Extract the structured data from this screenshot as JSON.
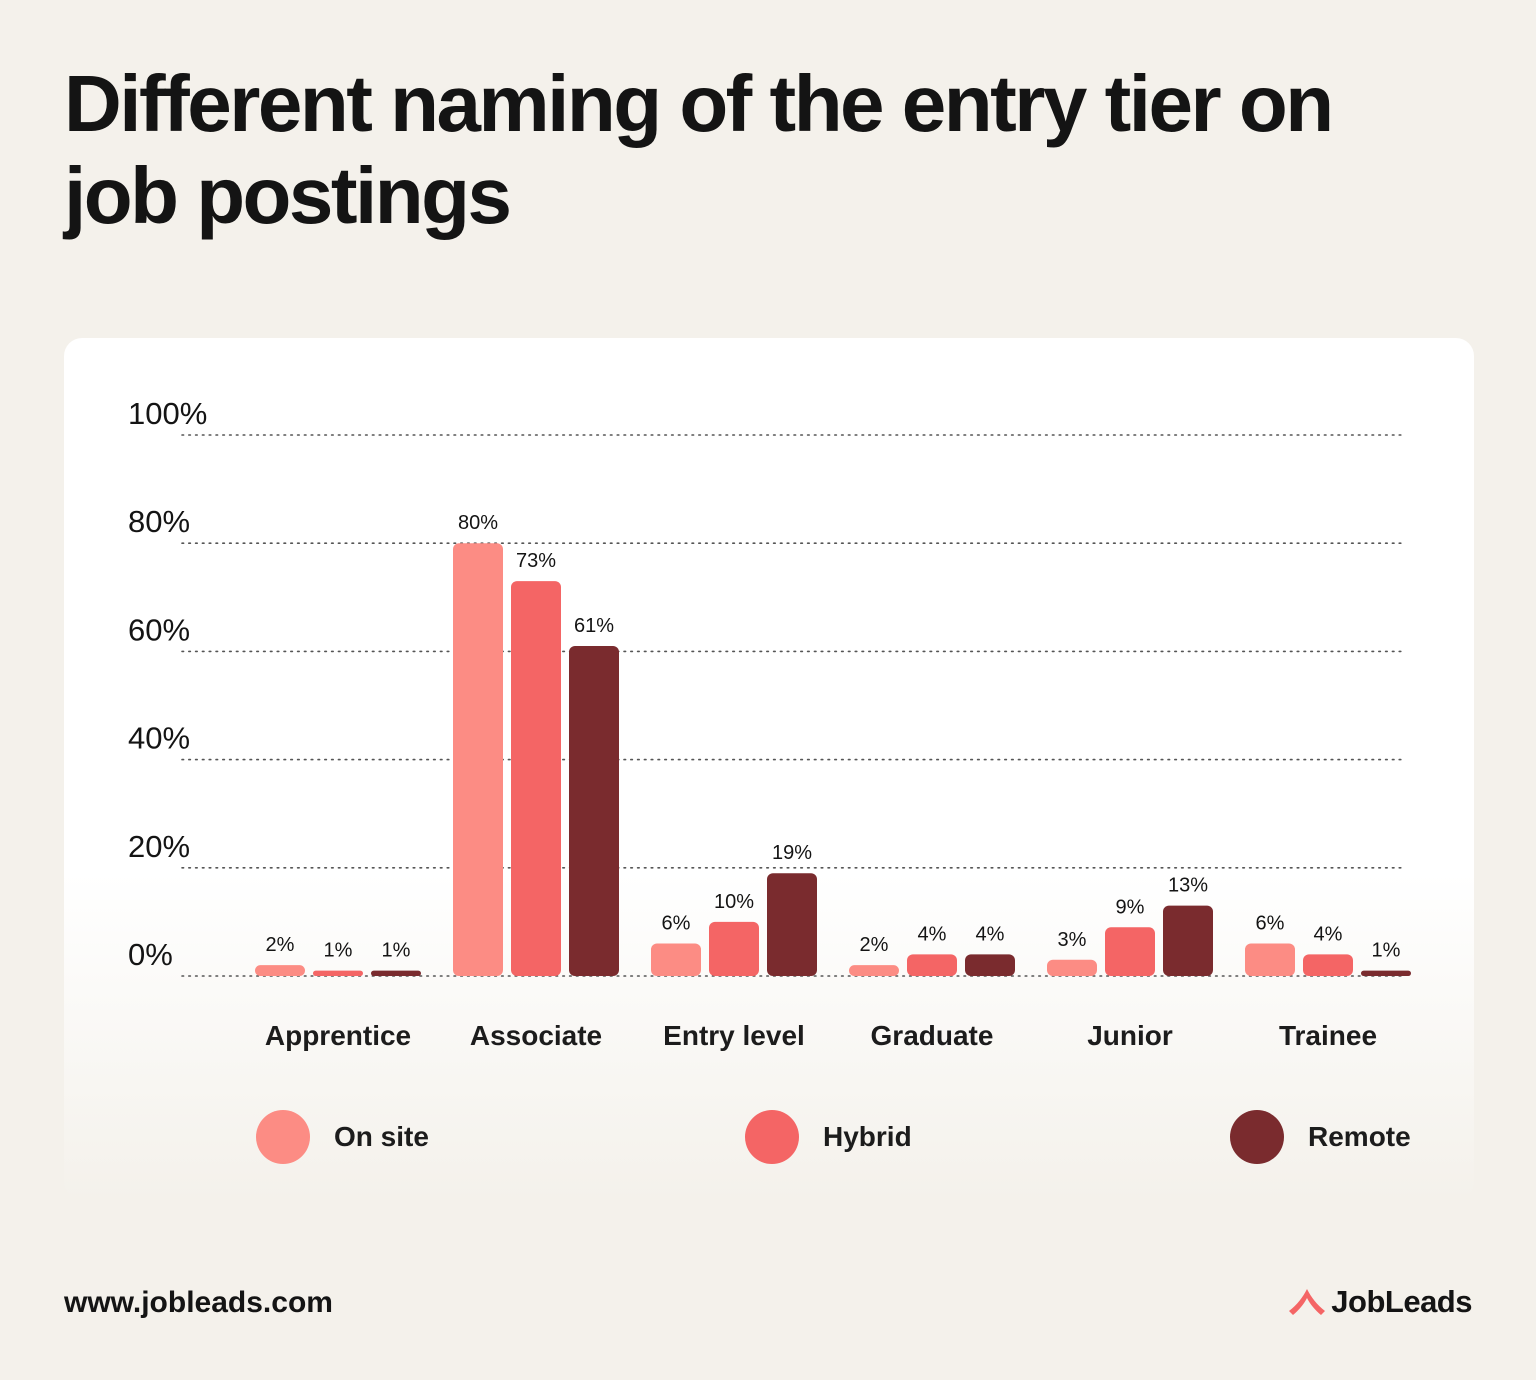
{
  "header": {
    "title": "Different naming of the entry tier on job postings"
  },
  "colors": {
    "on_site": "#fc8c84",
    "hybrid": "#f46565",
    "remote": "#7a2b2e",
    "brand_accent": "#f46565"
  },
  "chart_data": {
    "type": "bar",
    "title": "Different naming of the entry tier on job postings",
    "xlabel": "",
    "ylabel": "",
    "ylim": [
      0,
      100
    ],
    "y_ticks": [
      0,
      20,
      40,
      60,
      80,
      100
    ],
    "y_tick_labels": [
      "0%",
      "20%",
      "40%",
      "60%",
      "80%",
      "100%"
    ],
    "grid": "dotted horizontal",
    "legend_position": "bottom",
    "categories": [
      "Apprentice",
      "Associate",
      "Entry level",
      "Graduate",
      "Junior",
      "Trainee"
    ],
    "series": [
      {
        "name": "On site",
        "color": "#fc8c84",
        "values": [
          2,
          80,
          6,
          2,
          3,
          6
        ],
        "labels": [
          "2%",
          "80%",
          "6%",
          "2%",
          "3%",
          "6%"
        ]
      },
      {
        "name": "Hybrid",
        "color": "#f46565",
        "values": [
          1,
          73,
          10,
          4,
          9,
          4
        ],
        "labels": [
          "1%",
          "73%",
          "10%",
          "4%",
          "9%",
          "4%"
        ]
      },
      {
        "name": "Remote",
        "color": "#7a2b2e",
        "values": [
          1,
          61,
          19,
          4,
          13,
          1
        ],
        "labels": [
          "1%",
          "61%",
          "19%",
          "4%",
          "13%",
          "1%"
        ]
      }
    ]
  },
  "footer": {
    "url": "www.jobleads.com",
    "brand": "JobLeads",
    "brand_icon": "jobleads-logo-icon"
  }
}
